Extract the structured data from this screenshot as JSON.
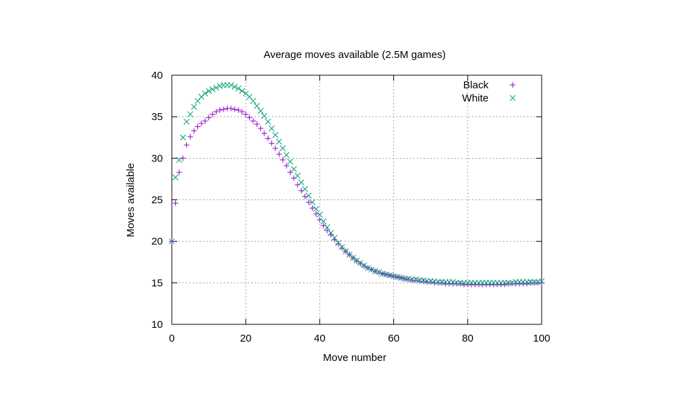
{
  "chart_data": {
    "type": "scatter",
    "title": "Average moves available (2.5M games)",
    "xlabel": "Move number",
    "ylabel": "Moves available",
    "xlim": [
      0,
      100
    ],
    "ylim": [
      10,
      40
    ],
    "xticks": [
      0,
      20,
      40,
      60,
      80,
      100
    ],
    "yticks": [
      10,
      15,
      20,
      25,
      30,
      35,
      40
    ],
    "grid": true,
    "legend_position": "top-right",
    "series": [
      {
        "name": "Black",
        "marker": "plus",
        "color": "#9400d3",
        "x": [
          0,
          1,
          2,
          3,
          4,
          5,
          6,
          7,
          8,
          9,
          10,
          11,
          12,
          13,
          14,
          15,
          16,
          17,
          18,
          19,
          20,
          21,
          22,
          23,
          24,
          25,
          26,
          27,
          28,
          29,
          30,
          31,
          32,
          33,
          34,
          35,
          36,
          37,
          38,
          39,
          40,
          41,
          42,
          43,
          44,
          45,
          46,
          47,
          48,
          49,
          50,
          51,
          52,
          53,
          54,
          55,
          56,
          57,
          58,
          59,
          60,
          61,
          62,
          63,
          64,
          65,
          66,
          67,
          68,
          69,
          70,
          71,
          72,
          73,
          74,
          75,
          76,
          77,
          78,
          79,
          80,
          81,
          82,
          83,
          84,
          85,
          86,
          87,
          88,
          89,
          90,
          91,
          92,
          93,
          94,
          95,
          96,
          97,
          98,
          99,
          100
        ],
        "y": [
          20.0,
          24.6,
          28.3,
          30.0,
          31.6,
          32.6,
          33.3,
          33.8,
          34.2,
          34.5,
          34.9,
          35.3,
          35.6,
          35.8,
          35.9,
          36.0,
          36.0,
          35.9,
          35.8,
          35.6,
          35.3,
          34.9,
          34.5,
          34.1,
          33.6,
          33.0,
          32.4,
          31.8,
          31.2,
          30.5,
          29.8,
          29.1,
          28.3,
          27.6,
          26.8,
          26.1,
          25.4,
          24.7,
          24.0,
          23.3,
          22.6,
          21.9,
          21.3,
          20.8,
          20.2,
          19.7,
          19.2,
          18.8,
          18.4,
          18.0,
          17.6,
          17.3,
          17.0,
          16.8,
          16.6,
          16.4,
          16.2,
          16.1,
          16.0,
          15.9,
          15.8,
          15.7,
          15.6,
          15.5,
          15.4,
          15.3,
          15.3,
          15.2,
          15.2,
          15.1,
          15.1,
          15.0,
          15.0,
          15.0,
          14.9,
          14.9,
          14.9,
          14.9,
          14.9,
          14.8,
          14.8,
          14.8,
          14.8,
          14.8,
          14.8,
          14.8,
          14.8,
          14.8,
          14.8,
          14.8,
          14.8,
          14.9,
          14.9,
          14.9,
          14.9,
          14.9,
          14.9,
          15.0,
          15.0,
          15.0,
          15.0
        ]
      },
      {
        "name": "White",
        "marker": "cross",
        "color": "#009e73",
        "x": [
          0,
          1,
          2,
          3,
          4,
          5,
          6,
          7,
          8,
          9,
          10,
          11,
          12,
          13,
          14,
          15,
          16,
          17,
          18,
          19,
          20,
          21,
          22,
          23,
          24,
          25,
          26,
          27,
          28,
          29,
          30,
          31,
          32,
          33,
          34,
          35,
          36,
          37,
          38,
          39,
          40,
          41,
          42,
          43,
          44,
          45,
          46,
          47,
          48,
          49,
          50,
          51,
          52,
          53,
          54,
          55,
          56,
          57,
          58,
          59,
          60,
          61,
          62,
          63,
          64,
          65,
          66,
          67,
          68,
          69,
          70,
          71,
          72,
          73,
          74,
          75,
          76,
          77,
          78,
          79,
          80,
          81,
          82,
          83,
          84,
          85,
          86,
          87,
          88,
          89,
          90,
          91,
          92,
          93,
          94,
          95,
          96,
          97,
          98,
          99,
          100
        ],
        "y": [
          20.0,
          27.7,
          29.8,
          32.5,
          34.4,
          35.3,
          36.2,
          36.9,
          37.4,
          37.8,
          38.1,
          38.3,
          38.5,
          38.7,
          38.8,
          38.8,
          38.8,
          38.6,
          38.4,
          38.1,
          37.8,
          37.4,
          36.9,
          36.3,
          35.7,
          35.1,
          34.4,
          33.6,
          32.8,
          32.0,
          31.2,
          30.4,
          29.6,
          28.7,
          27.9,
          27.1,
          26.3,
          25.5,
          24.7,
          23.9,
          23.2,
          22.4,
          21.7,
          21.0,
          20.4,
          19.8,
          19.3,
          18.8,
          18.4,
          18.0,
          17.7,
          17.4,
          17.1,
          16.8,
          16.6,
          16.4,
          16.3,
          16.1,
          16.0,
          15.9,
          15.8,
          15.7,
          15.6,
          15.5,
          15.5,
          15.4,
          15.4,
          15.3,
          15.3,
          15.2,
          15.2,
          15.2,
          15.1,
          15.1,
          15.1,
          15.1,
          15.1,
          15.0,
          15.0,
          15.0,
          15.0,
          15.0,
          15.0,
          15.0,
          15.0,
          15.0,
          15.0,
          15.0,
          15.0,
          15.0,
          15.0,
          15.0,
          15.0,
          15.1,
          15.1,
          15.1,
          15.1,
          15.1,
          15.1,
          15.1,
          15.2
        ]
      }
    ]
  }
}
